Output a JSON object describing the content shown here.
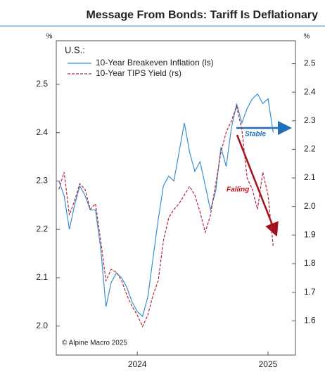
{
  "chart_data": {
    "type": "line",
    "title": "Message From Bonds: Tariff Is Deflationary",
    "legend_title": "U.S.:",
    "y_label": "%",
    "y2_label": "%",
    "source": "© Alpine Macro 2025",
    "annotations": [
      "Stable",
      "Falling"
    ],
    "x": [
      2023.4,
      2023.44,
      2023.48,
      2023.52,
      2023.56,
      2023.6,
      2023.64,
      2023.68,
      2023.72,
      2023.76,
      2023.8,
      2023.84,
      2023.88,
      2023.92,
      2023.96,
      2024.0,
      2024.04,
      2024.08,
      2024.12,
      2024.16,
      2024.2,
      2024.24,
      2024.28,
      2024.32,
      2024.36,
      2024.4,
      2024.44,
      2024.48,
      2024.52,
      2024.56,
      2024.6,
      2024.64,
      2024.68,
      2024.72,
      2024.76,
      2024.8,
      2024.84,
      2024.88,
      2024.92,
      2024.96,
      2025.0,
      2025.04
    ],
    "series": [
      {
        "name": "10-Year Breakeven Inflation (ls)",
        "color": "#3a8fd0",
        "dash": false,
        "values": [
          2.3,
          2.27,
          2.2,
          2.25,
          2.29,
          2.27,
          2.24,
          2.24,
          2.16,
          2.04,
          2.09,
          2.11,
          2.1,
          2.08,
          2.05,
          2.03,
          2.02,
          2.06,
          2.14,
          2.22,
          2.29,
          2.31,
          2.3,
          2.36,
          2.42,
          2.36,
          2.32,
          2.34,
          2.29,
          2.24,
          2.28,
          2.37,
          2.33,
          2.41,
          2.46,
          2.42,
          2.45,
          2.47,
          2.48,
          2.46,
          2.47,
          2.4
        ]
      },
      {
        "name": "10-Year TIPS Yield (rs)",
        "color": "#b22a3a",
        "dash": true,
        "axis": "y2",
        "values": [
          2.06,
          2.12,
          1.97,
          2.02,
          2.08,
          2.06,
          1.99,
          2.01,
          1.88,
          1.74,
          1.78,
          1.77,
          1.74,
          1.69,
          1.65,
          1.62,
          1.58,
          1.62,
          1.69,
          1.74,
          1.88,
          1.96,
          1.99,
          2.01,
          2.04,
          2.07,
          2.04,
          1.98,
          1.91,
          1.97,
          2.08,
          2.19,
          2.26,
          2.3,
          2.35,
          2.27,
          2.1,
          2.06,
          1.99,
          2.12,
          2.04,
          1.86
        ]
      }
    ],
    "xlim": [
      2023.38,
      2025.21
    ],
    "xticks": [
      2024,
      2025
    ],
    "ylim": [
      1.94,
      2.59
    ],
    "yticks": [
      {
        "value": 2,
        "label": "2.0"
      },
      2.1,
      2.2,
      2.3,
      2.4,
      2.5
    ],
    "y2lim": [
      1.48,
      2.58
    ],
    "y2ticks": [
      1.6,
      1.7,
      1.8,
      1.9,
      {
        "value": 2,
        "label": "2.0"
      },
      2.1,
      2.2,
      2.3,
      2.4,
      2.5
    ],
    "legend": "upper left"
  }
}
